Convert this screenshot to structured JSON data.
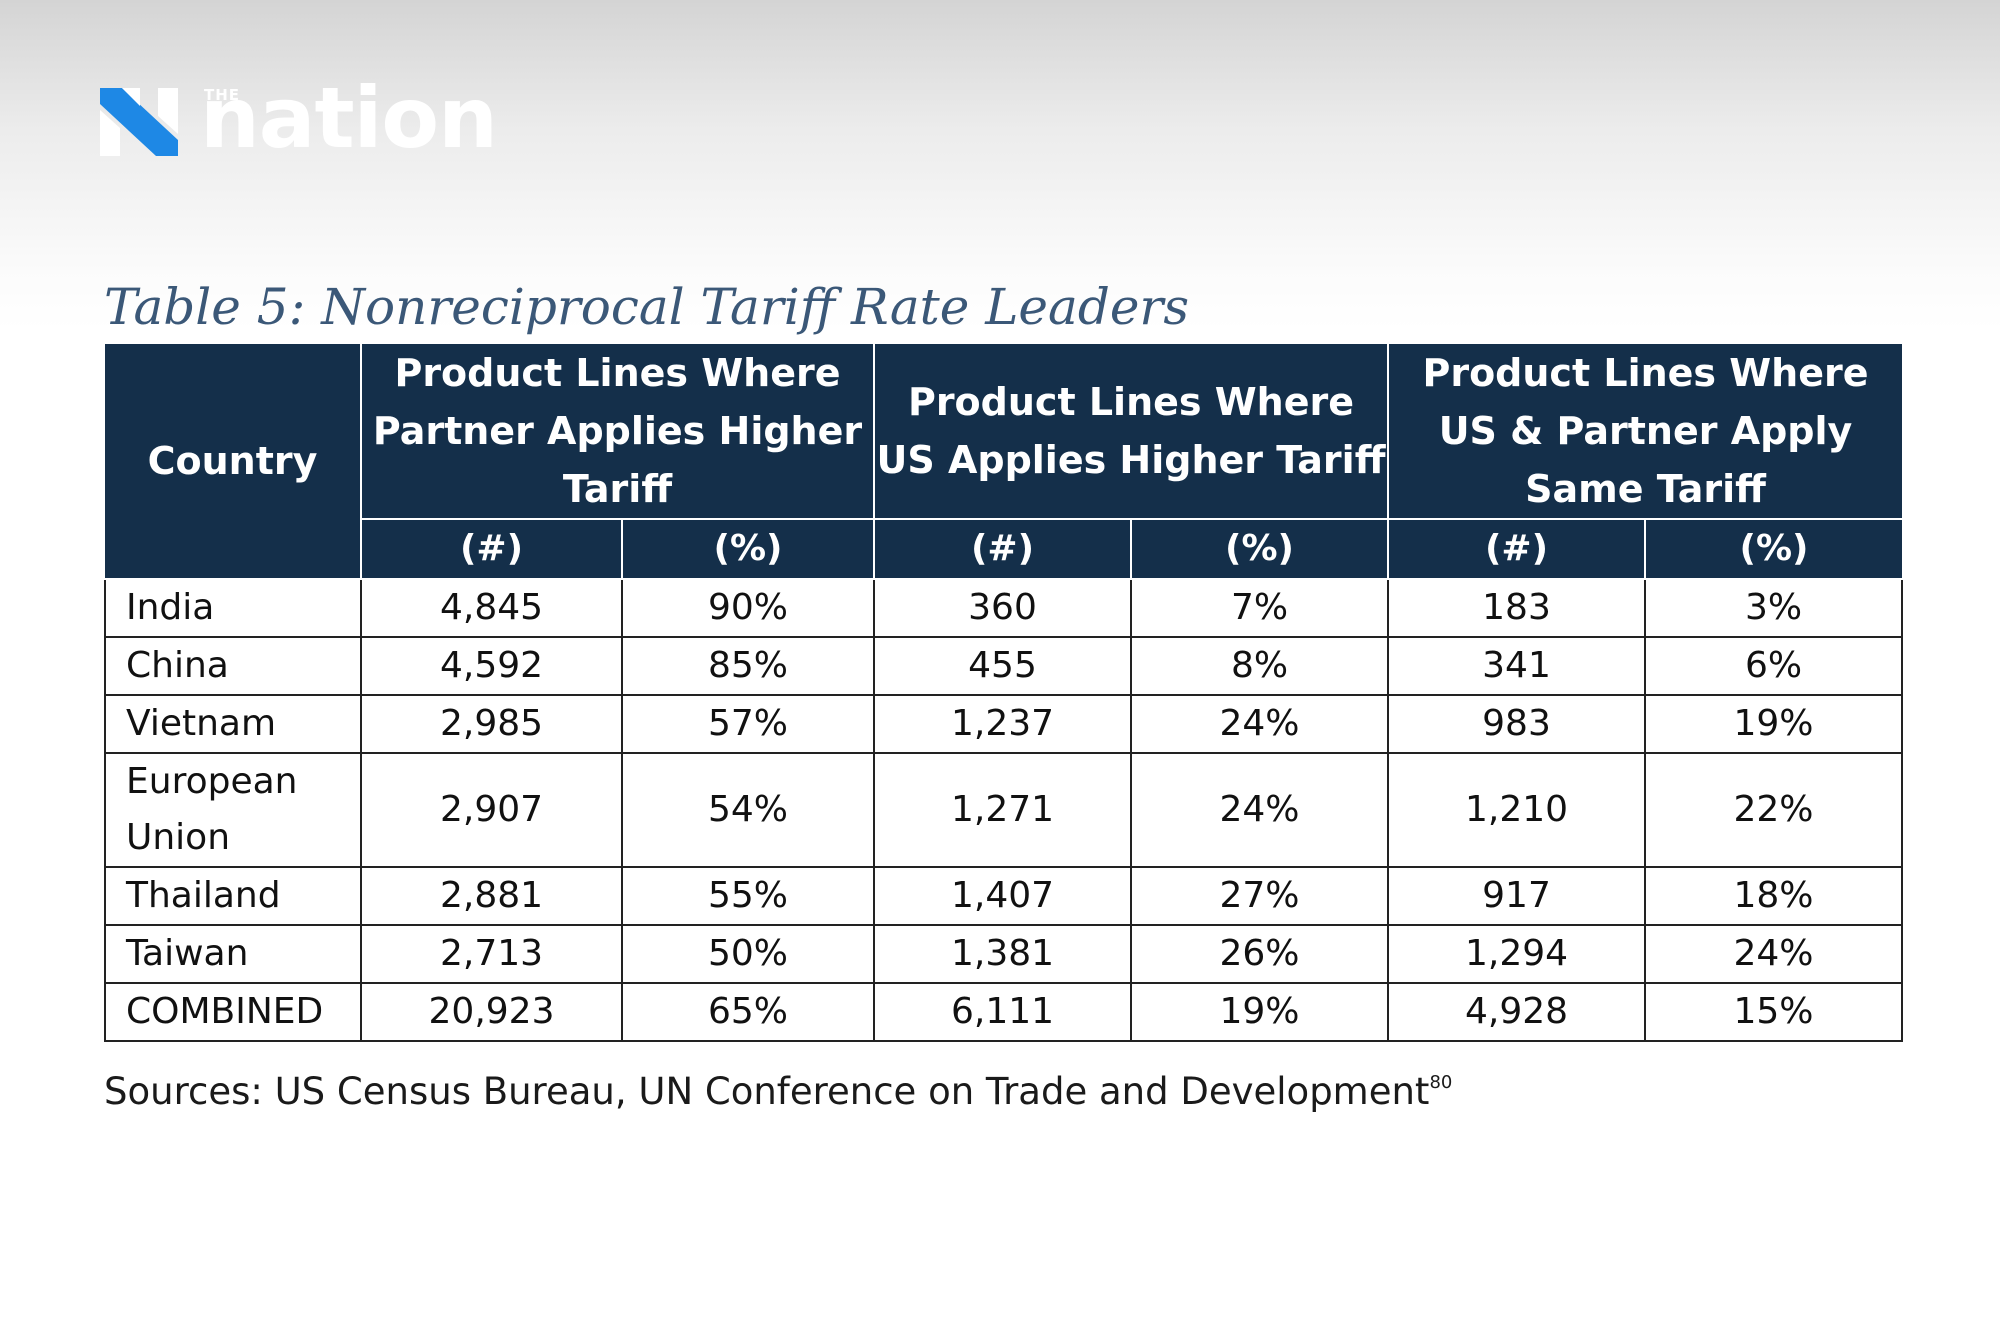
{
  "brand": {
    "logo_the": "THE",
    "logo_word": "nation"
  },
  "table": {
    "title": "Table 5: Nonreciprocal Tariff Rate Leaders",
    "country_header": "Country",
    "groups": [
      "Product Lines Where Partner Applies Higher Tariff",
      "Product Lines Where US Applies Higher Tariff",
      "Product Lines Where US & Partner Apply Same Tariff"
    ],
    "subheaders": [
      "(#)",
      "(%)"
    ],
    "rows": [
      {
        "country": "India",
        "values": [
          "4,845",
          "90%",
          "360",
          "7%",
          "183",
          "3%"
        ]
      },
      {
        "country": "China",
        "values": [
          "4,592",
          "85%",
          "455",
          "8%",
          "341",
          "6%"
        ]
      },
      {
        "country": "Vietnam",
        "values": [
          "2,985",
          "57%",
          "1,237",
          "24%",
          "983",
          "19%"
        ]
      },
      {
        "country": "European Union",
        "values": [
          "2,907",
          "54%",
          "1,271",
          "24%",
          "1,210",
          "22%"
        ]
      },
      {
        "country": "Thailand",
        "values": [
          "2,881",
          "55%",
          "1,407",
          "27%",
          "917",
          "18%"
        ]
      },
      {
        "country": "Taiwan",
        "values": [
          "2,713",
          "50%",
          "1,381",
          "26%",
          "1,294",
          "24%"
        ]
      },
      {
        "country": "COMBINED",
        "values": [
          "20,923",
          "65%",
          "6,111",
          "19%",
          "4,928",
          "15%"
        ]
      }
    ],
    "source": "Sources: US Census Bureau, UN Conference on Trade and Development",
    "source_footnote": "80"
  },
  "colors": {
    "header_bg": "#142f4a",
    "title_color": "#3b5878",
    "logo_blue": "#1e88e5"
  }
}
